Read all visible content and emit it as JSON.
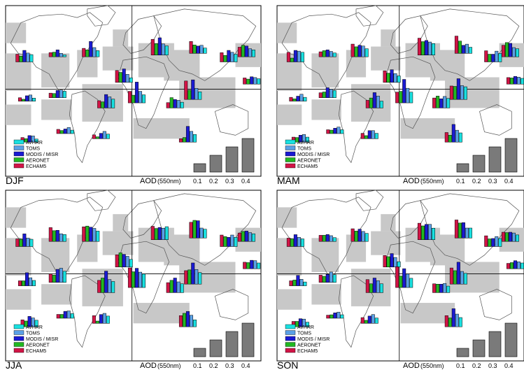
{
  "figure": {
    "aod_label": "AOD",
    "aod_unit": "(550nm)",
    "legend": [
      {
        "name": "AVHRR",
        "color": "#19e0e0"
      },
      {
        "name": "TOMS",
        "color": "#5aa0e6"
      },
      {
        "name": "MODIS / MISR",
        "color": "#1a1ad2"
      },
      {
        "name": "AERONET",
        "color": "#21b821"
      },
      {
        "name": "ECHAM5",
        "color": "#d21446"
      }
    ],
    "bar_color": "#7a7a7a"
  },
  "chart_data": [
    {
      "type": "bar",
      "title": "DJF",
      "legend_placement": "bottom-left",
      "categories": [
        "0.1",
        "0.2",
        "0.3",
        "0.4"
      ],
      "values": [
        0.1,
        0.2,
        0.3,
        0.4
      ],
      "regions": [
        {
          "values": [
            0.19,
            0.23,
            0.3,
            0.15,
            0.2
          ]
        },
        {
          "values": [
            0.05,
            0.09,
            0.18,
            0.12,
            0.11
          ]
        },
        {
          "values": [
            0.16,
            0.24,
            0.4,
            0.18,
            0.22
          ]
        },
        {
          "values": [
            0.12,
            0.21,
            0.35,
            0.26,
            0.31
          ]
        },
        {
          "values": [
            0.24,
            0.29,
            0.45,
            0.3,
            0.41
          ]
        },
        {
          "values": [
            0.14,
            0.21,
            0.19,
            0.22,
            0.31
          ]
        },
        {
          "values": [
            0.2,
            0.25,
            0.3,
            0.17,
            0.24
          ]
        },
        {
          "values": [
            0.14,
            0.17,
            0.19,
            0.13,
            0.16
          ]
        },
        {
          "values": [
            0.08,
            0.16,
            0.14,
            0.05,
            0.09
          ]
        },
        {
          "values": [
            0.17,
            0.2,
            0.19,
            0.11,
            0.12
          ]
        },
        {
          "values": [
            0.23,
            0.29,
            0.35,
            0.16,
            0.19
          ]
        },
        {
          "values": [
            0.21,
            0.3,
            0.54,
            0.2,
            0.3
          ]
        },
        {
          "values": [
            0.15,
            0.2,
            0.22,
            0.27,
            0.14
          ]
        },
        {
          "values": [
            0.08,
            0.16,
            0.17,
            0.09,
            0.12
          ]
        },
        {
          "values": [
            0.09,
            0.16,
            0.12,
            0.08,
            0.11
          ]
        },
        {
          "values": [
            0.12,
            0.19,
            0.14,
            0.05,
            0.1
          ]
        },
        {
          "values": [
            0.2,
            0.28,
            0.41,
            0.12,
            0.09
          ]
        },
        {
          "values": [
            0.2,
            0.29,
            0.51,
            0.24,
            0.48
          ]
        },
        {
          "values": [
            0.18,
            0.21,
            0.28,
            0.3,
            0.25
          ]
        }
      ]
    },
    {
      "type": "bar",
      "title": "MAM",
      "legend_placement": "bottom-left",
      "categories": [
        "0.1",
        "0.2",
        "0.3",
        "0.4"
      ],
      "values": [
        0.1,
        0.2,
        0.3,
        0.4
      ],
      "regions": [
        {
          "values": [
            0.25,
            0.28,
            0.3,
            0.1,
            0.25
          ]
        },
        {
          "values": [
            0.1,
            0.14,
            0.18,
            0.16,
            0.13
          ]
        },
        {
          "values": [
            0.21,
            0.28,
            0.3,
            0.26,
            0.33
          ]
        },
        {
          "values": [
            0.17,
            0.23,
            0.33,
            0.24,
            0.3
          ]
        },
        {
          "values": [
            0.3,
            0.34,
            0.38,
            0.35,
            0.44
          ]
        },
        {
          "values": [
            0.16,
            0.24,
            0.21,
            0.32,
            0.45
          ]
        },
        {
          "values": [
            0.22,
            0.28,
            0.2,
            0.2,
            0.29
          ]
        },
        {
          "values": [
            0.15,
            0.18,
            0.2,
            0.16,
            0.17
          ]
        },
        {
          "values": [
            0.1,
            0.18,
            0.13,
            0.06,
            0.1
          ]
        },
        {
          "values": [
            0.19,
            0.22,
            0.26,
            0.15,
            0.13
          ]
        },
        {
          "values": [
            0.18,
            0.31,
            0.4,
            0.26,
            0.2
          ]
        },
        {
          "values": [
            0.28,
            0.38,
            0.61,
            0.3,
            0.28
          ]
        },
        {
          "values": [
            0.25,
            0.3,
            0.24,
            0.31,
            0.26
          ]
        },
        {
          "values": [
            0.13,
            0.2,
            0.18,
            0.12,
            0.13
          ]
        },
        {
          "values": [
            0.1,
            0.17,
            0.14,
            0.09,
            0.1
          ]
        },
        {
          "values": [
            0.14,
            0.21,
            0.21,
            0.08,
            0.14
          ]
        },
        {
          "values": [
            0.24,
            0.31,
            0.46,
            0.18,
            0.25
          ]
        },
        {
          "values": [
            0.33,
            0.36,
            0.54,
            0.34,
            0.35
          ]
        },
        {
          "values": [
            0.21,
            0.24,
            0.35,
            0.37,
            0.3
          ]
        }
      ]
    },
    {
      "type": "bar",
      "title": "JJA",
      "legend_placement": "bottom-left",
      "categories": [
        "0.1",
        "0.2",
        "0.3",
        "0.4"
      ],
      "values": [
        0.1,
        0.2,
        0.3,
        0.4
      ],
      "regions": [
        {
          "values": [
            0.19,
            0.22,
            0.33,
            0.19,
            0.2
          ]
        },
        {
          "values": [
            0.18,
            0.2,
            0.29,
            0.28,
            0.36
          ]
        },
        {
          "values": [
            0.27,
            0.34,
            0.37,
            0.4,
            0.38
          ]
        },
        {
          "values": [
            0.2,
            0.28,
            0.33,
            0.37,
            0.32
          ]
        },
        {
          "values": [
            0.34,
            0.3,
            0.32,
            0.29,
            0.35
          ]
        },
        {
          "values": [
            0.23,
            0.26,
            0.45,
            0.46,
            0.41
          ]
        },
        {
          "values": [
            0.24,
            0.3,
            0.24,
            0.26,
            0.3
          ]
        },
        {
          "values": [
            0.15,
            0.21,
            0.22,
            0.16,
            0.17
          ]
        },
        {
          "values": [
            0.14,
            0.21,
            0.34,
            0.13,
            0.13
          ]
        },
        {
          "values": [
            0.29,
            0.37,
            0.34,
            0.19,
            0.22
          ]
        },
        {
          "values": [
            0.29,
            0.34,
            0.56,
            0.38,
            0.32
          ]
        },
        {
          "values": [
            0.35,
            0.4,
            0.5,
            0.41,
            0.51
          ]
        },
        {
          "values": [
            0.23,
            0.28,
            0.38,
            0.32,
            0.26
          ]
        },
        {
          "values": [
            0.17,
            0.23,
            0.27,
            0.15,
            0.18
          ]
        },
        {
          "values": [
            0.12,
            0.19,
            0.18,
            0.1,
            0.1
          ]
        },
        {
          "values": [
            0.19,
            0.26,
            0.23,
            0.06,
            0.2
          ]
        },
        {
          "values": [
            0.18,
            0.3,
            0.4,
            0.35,
            0.29
          ]
        },
        {
          "values": [
            0.3,
            0.38,
            0.55,
            0.37,
            0.35
          ]
        },
        {
          "values": [
            0.2,
            0.23,
            0.27,
            0.26,
            0.22
          ]
        }
      ]
    },
    {
      "type": "bar",
      "title": "SON",
      "legend_placement": "bottom-left",
      "categories": [
        "0.1",
        "0.2",
        "0.3",
        "0.4"
      ],
      "values": [
        0.1,
        0.2,
        0.3,
        0.4
      ],
      "regions": [
        {
          "values": [
            0.2,
            0.24,
            0.31,
            0.2,
            0.22
          ]
        },
        {
          "values": [
            0.1,
            0.15,
            0.18,
            0.16,
            0.16
          ]
        },
        {
          "values": [
            0.21,
            0.26,
            0.32,
            0.27,
            0.33
          ]
        },
        {
          "values": [
            0.14,
            0.25,
            0.35,
            0.27,
            0.3
          ]
        },
        {
          "values": [
            0.3,
            0.4,
            0.4,
            0.36,
            0.43
          ]
        },
        {
          "values": [
            0.26,
            0.26,
            0.4,
            0.39,
            0.47
          ]
        },
        {
          "values": [
            0.21,
            0.26,
            0.21,
            0.2,
            0.28
          ]
        },
        {
          "values": [
            0.15,
            0.18,
            0.21,
            0.16,
            0.14
          ]
        },
        {
          "values": [
            0.1,
            0.17,
            0.27,
            0.15,
            0.13
          ]
        },
        {
          "values": [
            0.2,
            0.27,
            0.21,
            0.16,
            0.19
          ]
        },
        {
          "values": [
            0.23,
            0.31,
            0.38,
            0.23,
            0.34
          ]
        },
        {
          "values": [
            0.24,
            0.35,
            0.49,
            0.3,
            0.54
          ]
        },
        {
          "values": [
            0.17,
            0.24,
            0.22,
            0.22,
            0.23
          ]
        },
        {
          "values": [
            0.12,
            0.2,
            0.21,
            0.14,
            0.14
          ]
        },
        {
          "values": [
            0.09,
            0.16,
            0.14,
            0.09,
            0.08
          ]
        },
        {
          "values": [
            0.14,
            0.23,
            0.19,
            0.08,
            0.15
          ]
        },
        {
          "values": [
            0.24,
            0.33,
            0.47,
            0.23,
            0.29
          ]
        },
        {
          "values": [
            0.28,
            0.33,
            0.57,
            0.35,
            0.42
          ]
        },
        {
          "values": [
            0.17,
            0.22,
            0.24,
            0.23,
            0.24
          ]
        }
      ]
    }
  ]
}
